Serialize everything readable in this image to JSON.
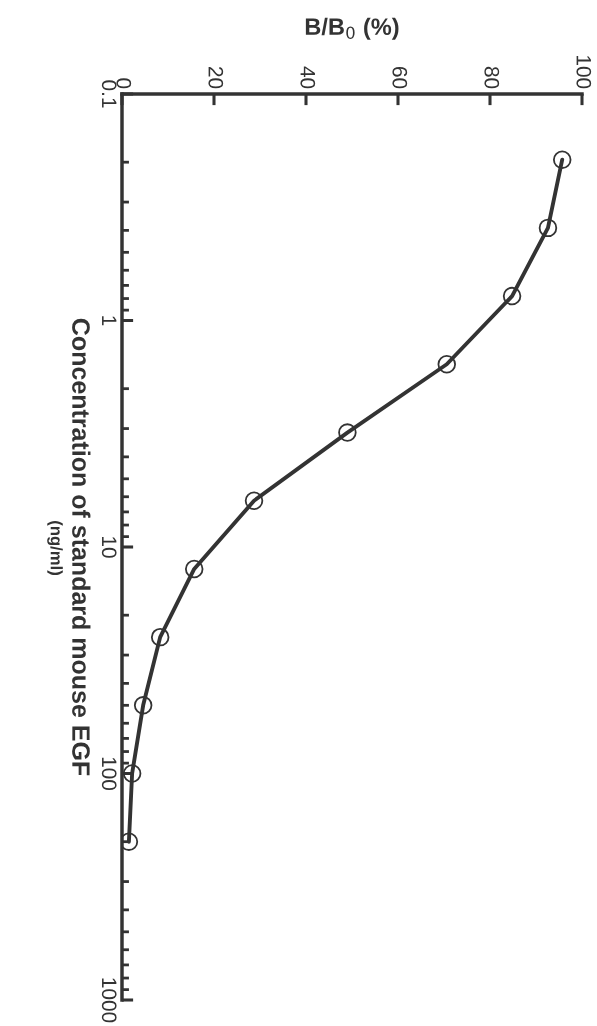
{
  "chart_data": {
    "type": "line",
    "xlabel": "B/B$_{0}$ (%)",
    "ylabel": "Concentration of standard mouse EGF",
    "annotations": [
      "(ng/ml)"
    ],
    "x": [
      95.7,
      92.6,
      84.8,
      70.6,
      49,
      28.7,
      15.7,
      8.3,
      4.6,
      2.2,
      1.5
    ],
    "series": [
      {
        "color": "#333333",
        "values": [
          0.195,
          0.39,
          0.78,
          1.56,
          3.125,
          6.25,
          12.5,
          25,
          50,
          100,
          200
        ]
      }
    ],
    "xlim": [
      0,
      100
    ],
    "xticks": [
      0,
      20,
      40,
      60,
      80,
      100
    ],
    "ylim": [
      1000,
      0.1
    ],
    "yticks": [
      0.1,
      1,
      10,
      100,
      1000
    ],
    "log": "y",
    "marker": "circle",
    "line_style": "solid",
    "grid": false,
    "legend": false
  }
}
